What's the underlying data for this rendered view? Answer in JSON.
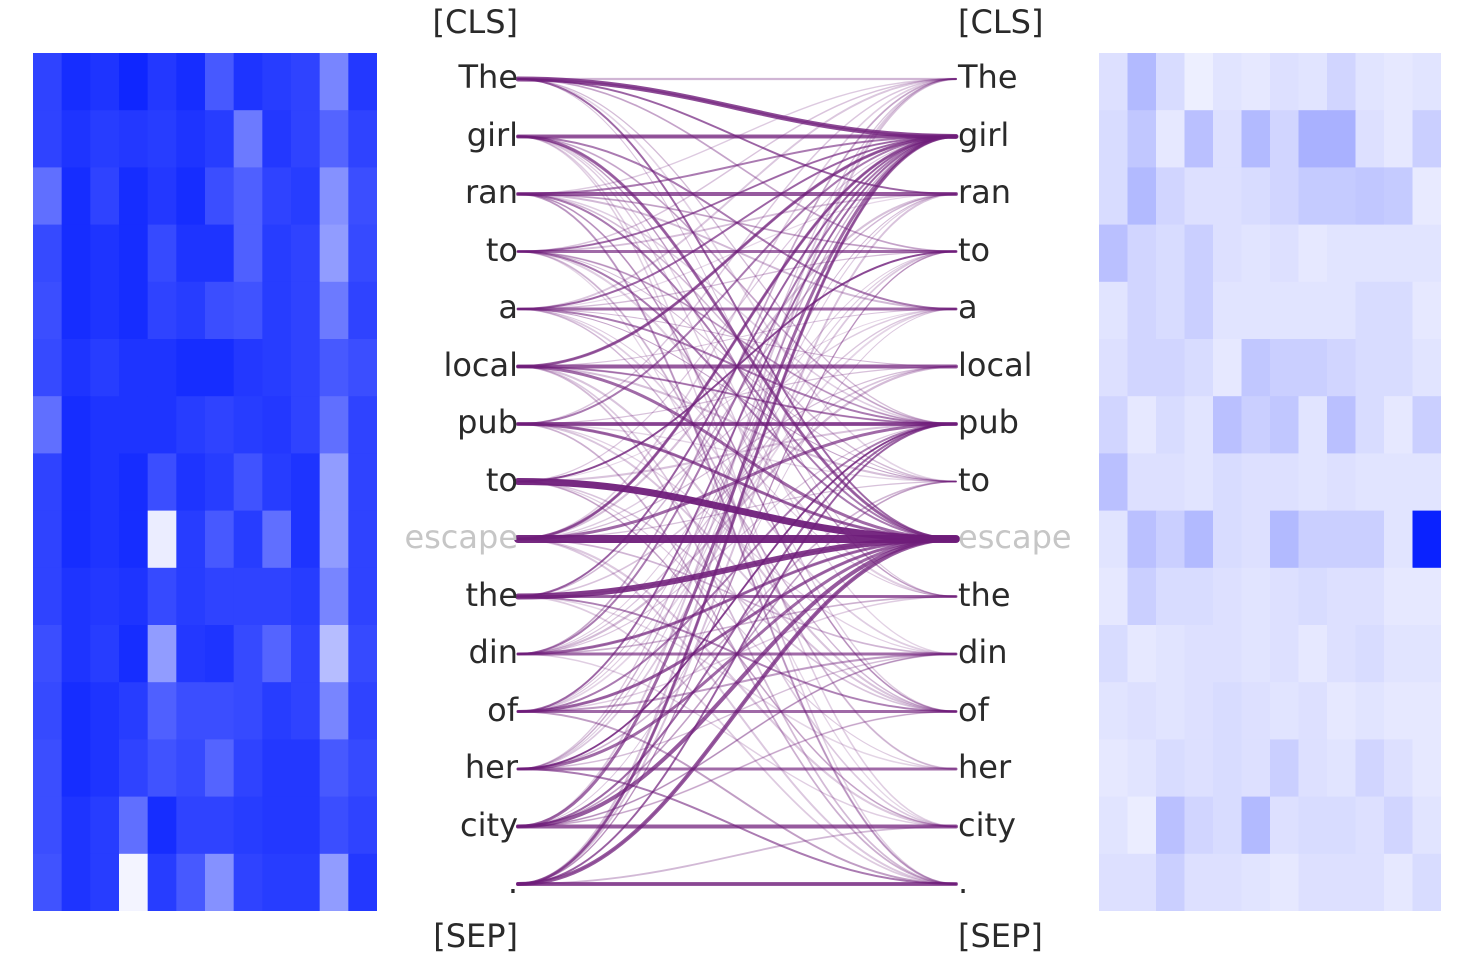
{
  "tokens": {
    "cls": "[CLS]",
    "sep": "[SEP]",
    "words": [
      "The",
      "girl",
      "ran",
      "to",
      "a",
      "local",
      "pub",
      "to",
      "escape",
      "the",
      "din",
      "of",
      "her",
      "city",
      "."
    ],
    "selected_index": 8
  },
  "colors": {
    "edge": "#6f1d7a",
    "left_heatmap_base": "#0a22ff",
    "right_heatmap_base": "#0a22ff"
  },
  "left_heatmap": {
    "rows": 15,
    "cols": 12,
    "whiteness": [
      [
        0.15,
        0.05,
        0.08,
        0.02,
        0.1,
        0.05,
        0.25,
        0.08,
        0.12,
        0.15,
        0.45,
        0.1
      ],
      [
        0.15,
        0.08,
        0.12,
        0.1,
        0.12,
        0.08,
        0.12,
        0.4,
        0.1,
        0.15,
        0.3,
        0.15
      ],
      [
        0.35,
        0.05,
        0.15,
        0.05,
        0.1,
        0.05,
        0.2,
        0.28,
        0.15,
        0.12,
        0.5,
        0.2
      ],
      [
        0.18,
        0.05,
        0.08,
        0.05,
        0.18,
        0.08,
        0.08,
        0.28,
        0.12,
        0.15,
        0.55,
        0.18
      ],
      [
        0.2,
        0.05,
        0.08,
        0.05,
        0.15,
        0.12,
        0.2,
        0.22,
        0.12,
        0.15,
        0.4,
        0.15
      ],
      [
        0.18,
        0.08,
        0.12,
        0.08,
        0.08,
        0.05,
        0.05,
        0.1,
        0.12,
        0.15,
        0.25,
        0.2
      ],
      [
        0.35,
        0.05,
        0.08,
        0.08,
        0.08,
        0.12,
        0.15,
        0.12,
        0.1,
        0.15,
        0.35,
        0.15
      ],
      [
        0.15,
        0.05,
        0.08,
        0.05,
        0.2,
        0.08,
        0.12,
        0.22,
        0.12,
        0.08,
        0.55,
        0.15
      ],
      [
        0.15,
        0.05,
        0.08,
        0.05,
        0.92,
        0.12,
        0.25,
        0.12,
        0.35,
        0.08,
        0.55,
        0.15
      ],
      [
        0.15,
        0.08,
        0.1,
        0.08,
        0.18,
        0.12,
        0.15,
        0.15,
        0.15,
        0.12,
        0.45,
        0.15
      ],
      [
        0.2,
        0.08,
        0.12,
        0.05,
        0.55,
        0.1,
        0.08,
        0.18,
        0.3,
        0.15,
        0.7,
        0.18
      ],
      [
        0.18,
        0.05,
        0.08,
        0.12,
        0.28,
        0.2,
        0.2,
        0.18,
        0.12,
        0.15,
        0.45,
        0.15
      ],
      [
        0.2,
        0.05,
        0.08,
        0.15,
        0.22,
        0.18,
        0.3,
        0.15,
        0.1,
        0.1,
        0.25,
        0.18
      ],
      [
        0.2,
        0.08,
        0.12,
        0.35,
        0.05,
        0.15,
        0.15,
        0.12,
        0.1,
        0.1,
        0.2,
        0.15
      ],
      [
        0.22,
        0.08,
        0.12,
        0.95,
        0.12,
        0.25,
        0.5,
        0.15,
        0.12,
        0.12,
        0.55,
        0.1
      ]
    ]
  },
  "right_heatmap": {
    "rows": 15,
    "cols": 12,
    "intensity": [
      [
        0.1,
        0.28,
        0.12,
        0.03,
        0.08,
        0.06,
        0.1,
        0.08,
        0.15,
        0.08,
        0.06,
        0.08
      ],
      [
        0.12,
        0.22,
        0.06,
        0.25,
        0.1,
        0.28,
        0.15,
        0.32,
        0.32,
        0.1,
        0.06,
        0.18
      ],
      [
        0.12,
        0.28,
        0.15,
        0.1,
        0.1,
        0.12,
        0.15,
        0.2,
        0.2,
        0.22,
        0.2,
        0.05
      ],
      [
        0.25,
        0.15,
        0.12,
        0.18,
        0.1,
        0.08,
        0.1,
        0.06,
        0.08,
        0.08,
        0.08,
        0.08
      ],
      [
        0.08,
        0.15,
        0.12,
        0.18,
        0.08,
        0.08,
        0.08,
        0.08,
        0.08,
        0.12,
        0.12,
        0.06
      ],
      [
        0.1,
        0.15,
        0.15,
        0.12,
        0.06,
        0.22,
        0.18,
        0.18,
        0.15,
        0.12,
        0.12,
        0.08
      ],
      [
        0.15,
        0.06,
        0.12,
        0.08,
        0.25,
        0.18,
        0.22,
        0.08,
        0.25,
        0.12,
        0.06,
        0.18
      ],
      [
        0.25,
        0.1,
        0.1,
        0.08,
        0.12,
        0.1,
        0.1,
        0.08,
        0.1,
        0.08,
        0.08,
        0.08
      ],
      [
        0.08,
        0.25,
        0.18,
        0.28,
        0.12,
        0.1,
        0.28,
        0.18,
        0.18,
        0.18,
        0.08,
        1.0
      ],
      [
        0.06,
        0.18,
        0.12,
        0.12,
        0.1,
        0.08,
        0.1,
        0.12,
        0.1,
        0.1,
        0.06,
        0.06
      ],
      [
        0.12,
        0.06,
        0.08,
        0.1,
        0.1,
        0.08,
        0.1,
        0.06,
        0.1,
        0.12,
        0.08,
        0.08
      ],
      [
        0.08,
        0.1,
        0.08,
        0.1,
        0.12,
        0.1,
        0.08,
        0.1,
        0.06,
        0.08,
        0.06,
        0.06
      ],
      [
        0.06,
        0.08,
        0.12,
        0.1,
        0.12,
        0.1,
        0.18,
        0.1,
        0.08,
        0.15,
        0.1,
        0.06
      ],
      [
        0.08,
        0.04,
        0.25,
        0.15,
        0.12,
        0.28,
        0.1,
        0.12,
        0.12,
        0.1,
        0.15,
        0.08
      ],
      [
        0.1,
        0.1,
        0.18,
        0.1,
        0.1,
        0.08,
        0.06,
        0.1,
        0.1,
        0.1,
        0.06,
        0.12
      ]
    ]
  },
  "edges": {
    "strong": [
      [
        0,
        1,
        5
      ],
      [
        0,
        2,
        2
      ],
      [
        1,
        1,
        4
      ],
      [
        1,
        4,
        2
      ],
      [
        2,
        2,
        4
      ],
      [
        2,
        1,
        2
      ],
      [
        3,
        3,
        3
      ],
      [
        3,
        1,
        2
      ],
      [
        4,
        4,
        3
      ],
      [
        4,
        1,
        2
      ],
      [
        5,
        5,
        4
      ],
      [
        5,
        1,
        3
      ],
      [
        6,
        6,
        4
      ],
      [
        6,
        1,
        2
      ],
      [
        7,
        8,
        7
      ],
      [
        7,
        3,
        2
      ],
      [
        8,
        8,
        8
      ],
      [
        8,
        1,
        3
      ],
      [
        8,
        6,
        3
      ],
      [
        9,
        8,
        6
      ],
      [
        9,
        9,
        3
      ],
      [
        10,
        10,
        3
      ],
      [
        10,
        8,
        3
      ],
      [
        10,
        1,
        2
      ],
      [
        11,
        11,
        3
      ],
      [
        11,
        8,
        3
      ],
      [
        11,
        1,
        2
      ],
      [
        12,
        12,
        3
      ],
      [
        12,
        8,
        3
      ],
      [
        12,
        14,
        2
      ],
      [
        13,
        13,
        4
      ],
      [
        13,
        8,
        4
      ],
      [
        13,
        1,
        3
      ],
      [
        13,
        6,
        2
      ],
      [
        14,
        14,
        4
      ],
      [
        14,
        8,
        4
      ],
      [
        14,
        1,
        3
      ],
      [
        14,
        6,
        2
      ],
      [
        3,
        8,
        2
      ],
      [
        5,
        8,
        3
      ],
      [
        6,
        8,
        3
      ],
      [
        2,
        8,
        2
      ],
      [
        1,
        8,
        3
      ],
      [
        0,
        8,
        2
      ],
      [
        4,
        6,
        2
      ],
      [
        9,
        1,
        2
      ],
      [
        11,
        6,
        2
      ],
      [
        12,
        6,
        2
      ]
    ],
    "faint_per_source": 10
  }
}
